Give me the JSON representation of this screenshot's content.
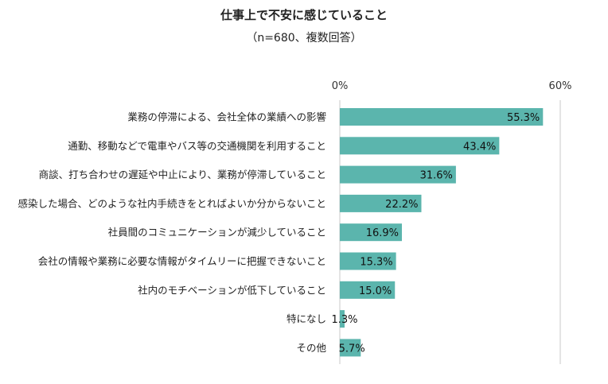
{
  "chart_data": {
    "type": "bar",
    "orientation": "horizontal",
    "title": "仕事上で不安に感じていること",
    "subtitle": "（n=680、複数回答）",
    "categories": [
      "業務の停滞による、会社全体の業績への影響",
      "通勤、移動などで電車やバス等の交通機関を利用すること",
      "商談、打ち合わせの遅延や中止により、業務が停滞していること",
      "感染した場合、どのような社内手続きをとればよいか分からないこと",
      "社員間のコミュニケーションが減少していること",
      "会社の情報や業務に必要な情報がタイムリーに把握できないこと",
      "社内のモチベーションが低下していること",
      "特になし",
      "その他"
    ],
    "values": [
      55.3,
      43.4,
      31.6,
      22.2,
      16.9,
      15.3,
      15.0,
      1.3,
      5.7
    ],
    "value_labels": [
      "55.3%",
      "43.4%",
      "31.6%",
      "22.2%",
      "16.9%",
      "15.3%",
      "15.0%",
      "1.3%",
      "5.7%"
    ],
    "xlim": [
      0,
      60
    ],
    "tick_labels": [
      "0%",
      "60%"
    ],
    "bar_color": "#5bb5ad",
    "grid": false
  }
}
